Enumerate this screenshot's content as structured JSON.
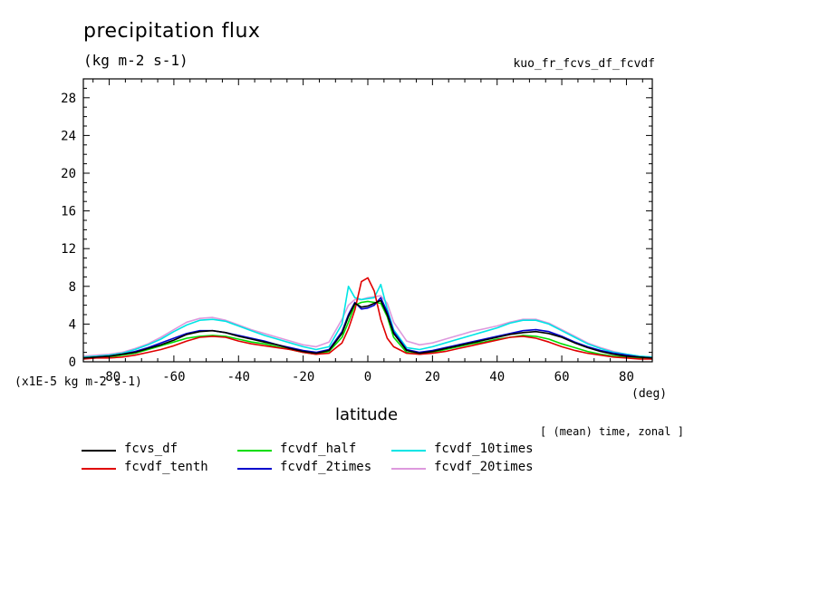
{
  "chart_data": {
    "type": "line",
    "title": "precipitation flux",
    "units": "(kg m-2 s-1)",
    "experiment": "kuo_fr_fcvs_df_fcvdf",
    "xlabel": "latitude",
    "x_unit": "(deg)",
    "y_scale_label": "(x1E-5 kg m-2 s-1)",
    "averaging_note": "[ (mean) time, zonal ]",
    "xlim": [
      -88,
      88
    ],
    "ylim": [
      0,
      30
    ],
    "x_ticks": [
      -80,
      -60,
      -40,
      -20,
      0,
      20,
      40,
      60,
      80
    ],
    "x_tick_labels": [
      "-80",
      "-60",
      "-40",
      "-20",
      "0",
      "20",
      "40",
      "60",
      "80"
    ],
    "y_ticks": [
      0,
      4,
      8,
      12,
      16,
      20,
      24,
      28
    ],
    "y_tick_labels": [
      "0",
      "4",
      "8",
      "12",
      "16",
      "20",
      "24",
      "28"
    ],
    "x": [
      -88,
      -84,
      -80,
      -76,
      -72,
      -68,
      -64,
      -60,
      -56,
      -52,
      -48,
      -44,
      -40,
      -36,
      -32,
      -28,
      -24,
      -20,
      -16,
      -12,
      -8,
      -6,
      -4,
      -2,
      0,
      2,
      4,
      6,
      8,
      12,
      16,
      20,
      24,
      28,
      32,
      36,
      40,
      44,
      48,
      52,
      56,
      60,
      64,
      68,
      72,
      76,
      80,
      84,
      88
    ],
    "series": [
      {
        "name": "fcvs_df",
        "color": "#000000",
        "values": [
          0.4,
          0.5,
          0.6,
          0.8,
          1.0,
          1.4,
          1.8,
          2.3,
          2.9,
          3.2,
          3.3,
          3.1,
          2.7,
          2.4,
          2.1,
          1.8,
          1.4,
          1.1,
          0.9,
          1.2,
          3.0,
          4.8,
          6.2,
          5.8,
          5.9,
          6.2,
          6.5,
          5.0,
          3.0,
          1.2,
          0.9,
          1.1,
          1.4,
          1.7,
          2.0,
          2.3,
          2.6,
          2.9,
          3.1,
          3.2,
          3.0,
          2.6,
          2.0,
          1.5,
          1.1,
          0.8,
          0.6,
          0.5,
          0.4
        ]
      },
      {
        "name": "fcvdf_tenth",
        "color": "#e00000",
        "values": [
          0.3,
          0.4,
          0.4,
          0.5,
          0.7,
          1.0,
          1.3,
          1.7,
          2.2,
          2.6,
          2.7,
          2.6,
          2.2,
          1.9,
          1.7,
          1.5,
          1.3,
          1.0,
          0.8,
          0.9,
          2.0,
          3.5,
          5.5,
          8.5,
          8.9,
          7.5,
          4.5,
          2.5,
          1.6,
          0.9,
          0.8,
          0.9,
          1.1,
          1.4,
          1.7,
          2.0,
          2.3,
          2.6,
          2.7,
          2.5,
          2.1,
          1.6,
          1.2,
          0.9,
          0.7,
          0.5,
          0.4,
          0.3,
          0.3
        ]
      },
      {
        "name": "fcvdf_half",
        "color": "#00dd00",
        "values": [
          0.4,
          0.5,
          0.5,
          0.7,
          0.9,
          1.3,
          1.7,
          2.1,
          2.5,
          2.7,
          2.8,
          2.7,
          2.4,
          2.1,
          1.9,
          1.6,
          1.3,
          1.0,
          0.8,
          1.1,
          2.6,
          4.2,
          6.0,
          6.3,
          6.4,
          6.3,
          6.2,
          4.8,
          2.6,
          1.0,
          0.8,
          1.0,
          1.3,
          1.6,
          1.9,
          2.1,
          2.4,
          2.6,
          2.8,
          2.7,
          2.4,
          1.9,
          1.5,
          1.1,
          0.8,
          0.6,
          0.5,
          0.4,
          0.3
        ]
      },
      {
        "name": "fcvdf_2times",
        "color": "#0000cc",
        "values": [
          0.4,
          0.5,
          0.6,
          0.8,
          1.1,
          1.5,
          2.0,
          2.5,
          3.0,
          3.3,
          3.3,
          3.1,
          2.8,
          2.5,
          2.2,
          1.8,
          1.5,
          1.2,
          1.0,
          1.3,
          3.2,
          5.0,
          6.3,
          5.6,
          5.7,
          6.0,
          6.8,
          5.3,
          3.2,
          1.3,
          1.0,
          1.2,
          1.5,
          1.8,
          2.1,
          2.4,
          2.7,
          3.0,
          3.3,
          3.4,
          3.2,
          2.7,
          2.1,
          1.6,
          1.2,
          0.9,
          0.7,
          0.5,
          0.4
        ]
      },
      {
        "name": "fcvdf_10times",
        "color": "#00e5e5",
        "values": [
          0.5,
          0.6,
          0.7,
          0.9,
          1.3,
          1.8,
          2.4,
          3.2,
          3.9,
          4.4,
          4.5,
          4.3,
          3.8,
          3.3,
          2.8,
          2.4,
          2.0,
          1.6,
          1.3,
          1.6,
          4.0,
          8.0,
          6.8,
          6.6,
          6.7,
          6.8,
          8.2,
          5.6,
          3.4,
          1.5,
          1.3,
          1.6,
          2.0,
          2.4,
          2.8,
          3.2,
          3.6,
          4.1,
          4.4,
          4.4,
          4.0,
          3.3,
          2.6,
          1.9,
          1.4,
          1.0,
          0.8,
          0.6,
          0.5
        ]
      },
      {
        "name": "fcvdf_20times",
        "color": "#dd99dd",
        "values": [
          0.6,
          0.7,
          0.8,
          1.0,
          1.4,
          1.9,
          2.6,
          3.4,
          4.2,
          4.6,
          4.7,
          4.4,
          3.9,
          3.4,
          3.0,
          2.6,
          2.2,
          1.8,
          1.6,
          2.1,
          4.5,
          6.0,
          6.6,
          6.6,
          6.8,
          6.9,
          7.0,
          6.2,
          4.2,
          2.2,
          1.8,
          2.0,
          2.4,
          2.8,
          3.2,
          3.5,
          3.8,
          4.2,
          4.5,
          4.5,
          4.1,
          3.4,
          2.7,
          2.0,
          1.5,
          1.1,
          0.8,
          0.6,
          0.5
        ]
      }
    ]
  }
}
